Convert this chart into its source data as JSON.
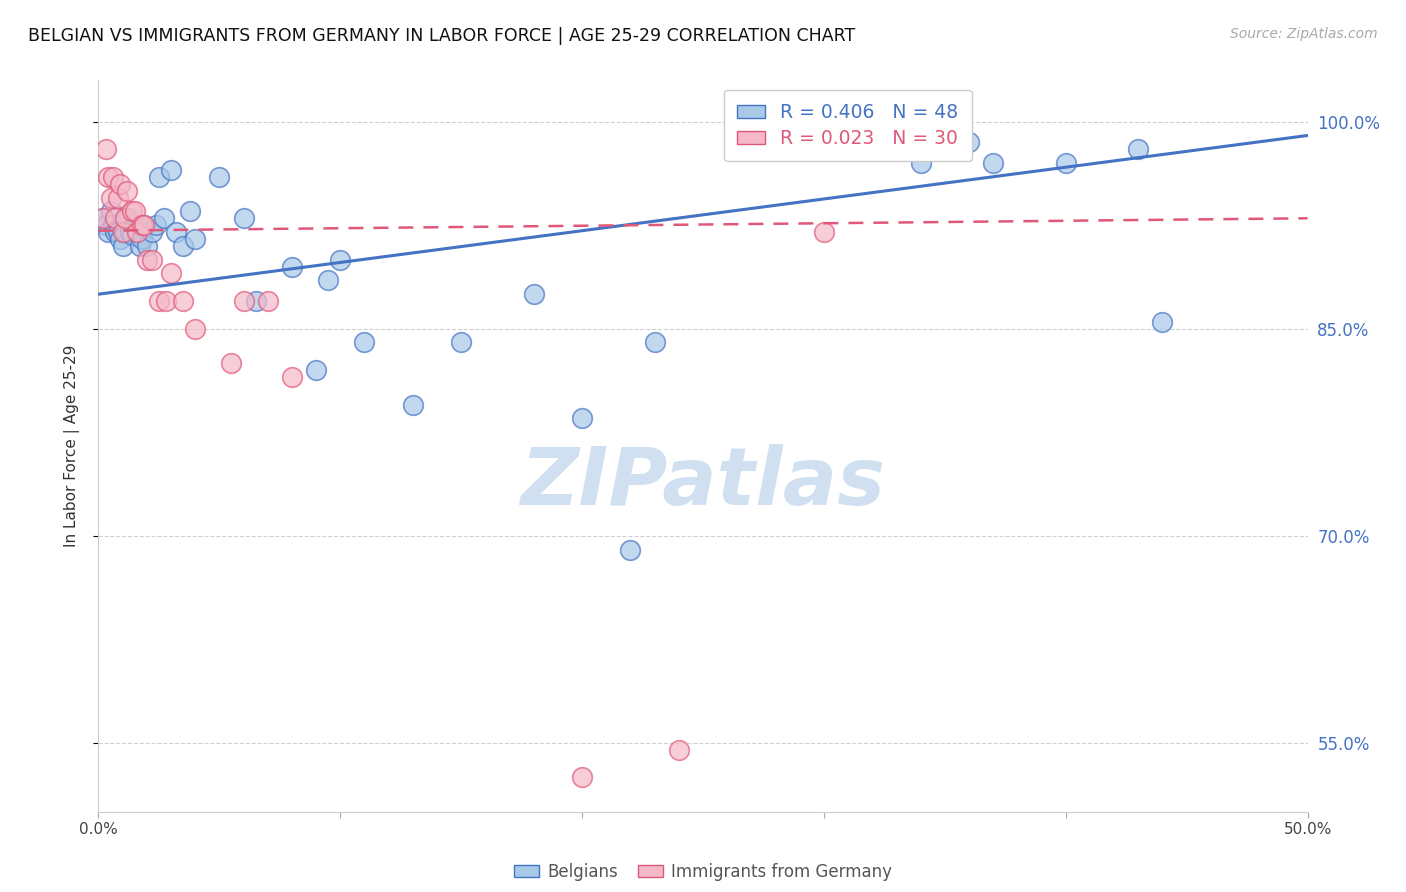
{
  "title": "BELGIAN VS IMMIGRANTS FROM GERMANY IN LABOR FORCE | AGE 25-29 CORRELATION CHART",
  "source": "Source: ZipAtlas.com",
  "ylabel": "In Labor Force | Age 25-29",
  "xlim": [
    0.0,
    0.5
  ],
  "ylim": [
    0.5,
    1.03
  ],
  "yticks": [
    0.55,
    0.7,
    0.85,
    1.0
  ],
  "ytick_labels": [
    "55.0%",
    "70.0%",
    "85.0%",
    "100.0%"
  ],
  "xticks": [
    0.0,
    0.1,
    0.2,
    0.3,
    0.4,
    0.5
  ],
  "xtick_labels": [
    "0.0%",
    "",
    "",
    "",
    "",
    "50.0%"
  ],
  "blue_fill": "#a8c8e8",
  "blue_edge": "#4472c4",
  "pink_fill": "#f4b8c8",
  "pink_edge": "#e05878",
  "blue_trend_color": "#4472c4",
  "pink_trend_color": "#e05878",
  "legend_blue_label": "R = 0.406   N = 48",
  "legend_pink_label": "R = 0.023   N = 30",
  "belgians_label": "Belgians",
  "immigrants_label": "Immigrants from Germany",
  "watermark": "ZIPatlas",
  "blue_x": [
    0.002,
    0.003,
    0.004,
    0.005,
    0.006,
    0.007,
    0.008,
    0.009,
    0.01,
    0.011,
    0.012,
    0.013,
    0.014,
    0.015,
    0.016,
    0.017,
    0.018,
    0.019,
    0.02,
    0.022,
    0.024,
    0.025,
    0.027,
    0.03,
    0.032,
    0.035,
    0.038,
    0.04,
    0.05,
    0.06,
    0.065,
    0.08,
    0.09,
    0.095,
    0.1,
    0.11,
    0.13,
    0.15,
    0.18,
    0.2,
    0.22,
    0.23,
    0.34,
    0.36,
    0.37,
    0.4,
    0.43,
    0.44
  ],
  "blue_y": [
    0.93,
    0.925,
    0.92,
    0.935,
    0.925,
    0.92,
    0.92,
    0.915,
    0.91,
    0.92,
    0.93,
    0.92,
    0.918,
    0.925,
    0.92,
    0.91,
    0.915,
    0.925,
    0.91,
    0.92,
    0.925,
    0.96,
    0.93,
    0.965,
    0.92,
    0.91,
    0.935,
    0.915,
    0.96,
    0.93,
    0.87,
    0.895,
    0.82,
    0.885,
    0.9,
    0.84,
    0.795,
    0.84,
    0.875,
    0.785,
    0.69,
    0.84,
    0.97,
    0.985,
    0.97,
    0.97,
    0.98,
    0.855
  ],
  "pink_x": [
    0.002,
    0.003,
    0.004,
    0.005,
    0.006,
    0.007,
    0.008,
    0.009,
    0.01,
    0.011,
    0.012,
    0.014,
    0.015,
    0.016,
    0.018,
    0.019,
    0.02,
    0.022,
    0.025,
    0.028,
    0.03,
    0.035,
    0.04,
    0.055,
    0.06,
    0.07,
    0.08,
    0.2,
    0.24,
    0.3
  ],
  "pink_y": [
    0.93,
    0.98,
    0.96,
    0.945,
    0.96,
    0.93,
    0.945,
    0.955,
    0.92,
    0.93,
    0.95,
    0.935,
    0.935,
    0.92,
    0.925,
    0.925,
    0.9,
    0.9,
    0.87,
    0.87,
    0.89,
    0.87,
    0.85,
    0.825,
    0.87,
    0.87,
    0.815,
    0.525,
    0.545,
    0.92
  ],
  "blue_trend_x": [
    0.0,
    0.5
  ],
  "blue_trend_y": [
    0.875,
    0.99
  ],
  "pink_trend_x": [
    0.0,
    0.5
  ],
  "pink_trend_y": [
    0.921,
    0.93
  ],
  "title_color": "#111111",
  "right_tick_color": "#4472c4",
  "grid_color": "#d0d0d0",
  "title_fontsize": 12.5,
  "ylabel_fontsize": 11,
  "source_fontsize": 10,
  "watermark_color": "#ccddf0"
}
